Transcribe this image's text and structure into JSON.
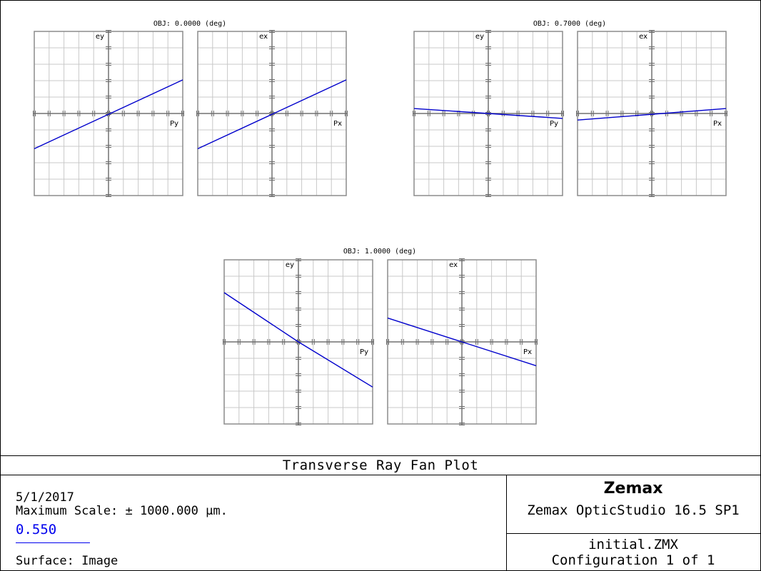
{
  "chart_data": {
    "type": "line",
    "title": "Transverse Ray Fan Plot",
    "panels": [
      {
        "title": "OBJ: 0.0000 (deg)",
        "plots": [
          {
            "xlabel": "Py",
            "ylabel": "ey",
            "color": "#0000cc",
            "x": [
              -1,
              1
            ],
            "y": [
              -0.43,
              0.41
            ]
          },
          {
            "xlabel": "Px",
            "ylabel": "ex",
            "color": "#0000cc",
            "x": [
              -1,
              1
            ],
            "y": [
              -0.43,
              0.41
            ]
          }
        ]
      },
      {
        "title": "OBJ: 0.7000 (deg)",
        "plots": [
          {
            "xlabel": "Py",
            "ylabel": "ey",
            "color": "#0000cc",
            "x": [
              -1,
              1
            ],
            "y": [
              0.06,
              -0.06
            ]
          },
          {
            "xlabel": "Px",
            "ylabel": "ex",
            "color": "#0000cc",
            "x": [
              -1,
              1
            ],
            "y": [
              -0.08,
              0.06
            ]
          }
        ]
      },
      {
        "title": "OBJ: 1.0000 (deg)",
        "plots": [
          {
            "xlabel": "Py",
            "ylabel": "ey",
            "color": "#0000cc",
            "x": [
              -1,
              0,
              1
            ],
            "y": [
              0.6,
              0.0,
              -0.55
            ]
          },
          {
            "xlabel": "Px",
            "ylabel": "ex",
            "color": "#0000cc",
            "x": [
              -1,
              0,
              1
            ],
            "y": [
              0.29,
              0.0,
              -0.29
            ]
          }
        ]
      }
    ],
    "xlim": [
      -1,
      1
    ],
    "ylim": [
      -1,
      1
    ],
    "grid": true
  },
  "footer": {
    "title": "Transverse Ray Fan Plot",
    "date": "5/1/2017",
    "max_scale": "Maximum Scale: ± 1000.000 µm.",
    "wavelength": "0.550",
    "wavelength_color": "#0000ee",
    "surface": "Surface: Image",
    "company": "Zemax",
    "product": "Zemax OpticStudio 16.5 SP1",
    "file": "initial.ZMX",
    "configuration": "Configuration 1 of 1"
  }
}
